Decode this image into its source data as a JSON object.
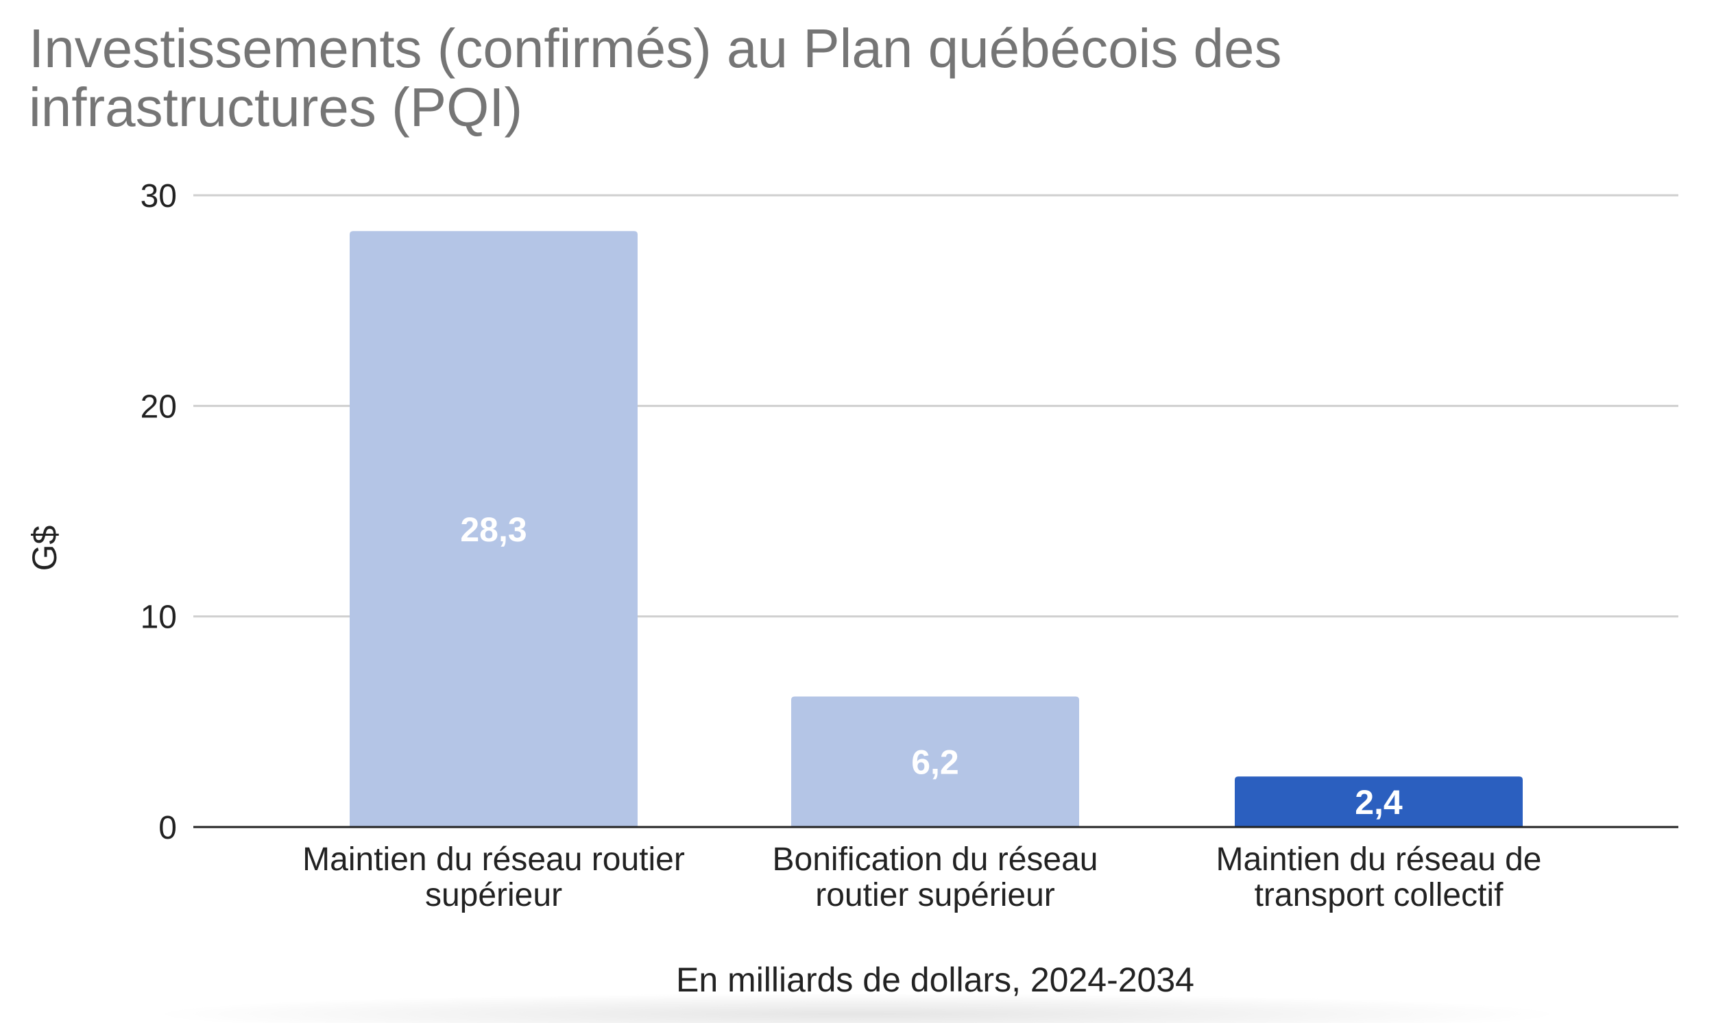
{
  "chart_data": {
    "type": "bar",
    "title": "Investissements (confirmés) au Plan québécois des infrastructures (PQI)",
    "xlabel": "En milliards de dollars, 2024-2034",
    "ylabel": "G$",
    "ylim": [
      0,
      30
    ],
    "yticks": [
      "0",
      "10",
      "20",
      "30"
    ],
    "grid": true,
    "legend": "none",
    "categories": [
      [
        "Maintien du réseau routier",
        "supérieur"
      ],
      [
        "Bonification du réseau",
        "routier supérieur"
      ],
      [
        "Maintien du réseau de",
        "transport collectif"
      ]
    ],
    "values": [
      28.3,
      6.2,
      2.4
    ],
    "value_labels": [
      "28,3",
      "6,2",
      "2,4"
    ],
    "colors": [
      "#b4c5e6",
      "#b4c5e6",
      "#2b5fbf"
    ],
    "gridline_color": "#cfcfcf",
    "axis_color": "#222222"
  }
}
